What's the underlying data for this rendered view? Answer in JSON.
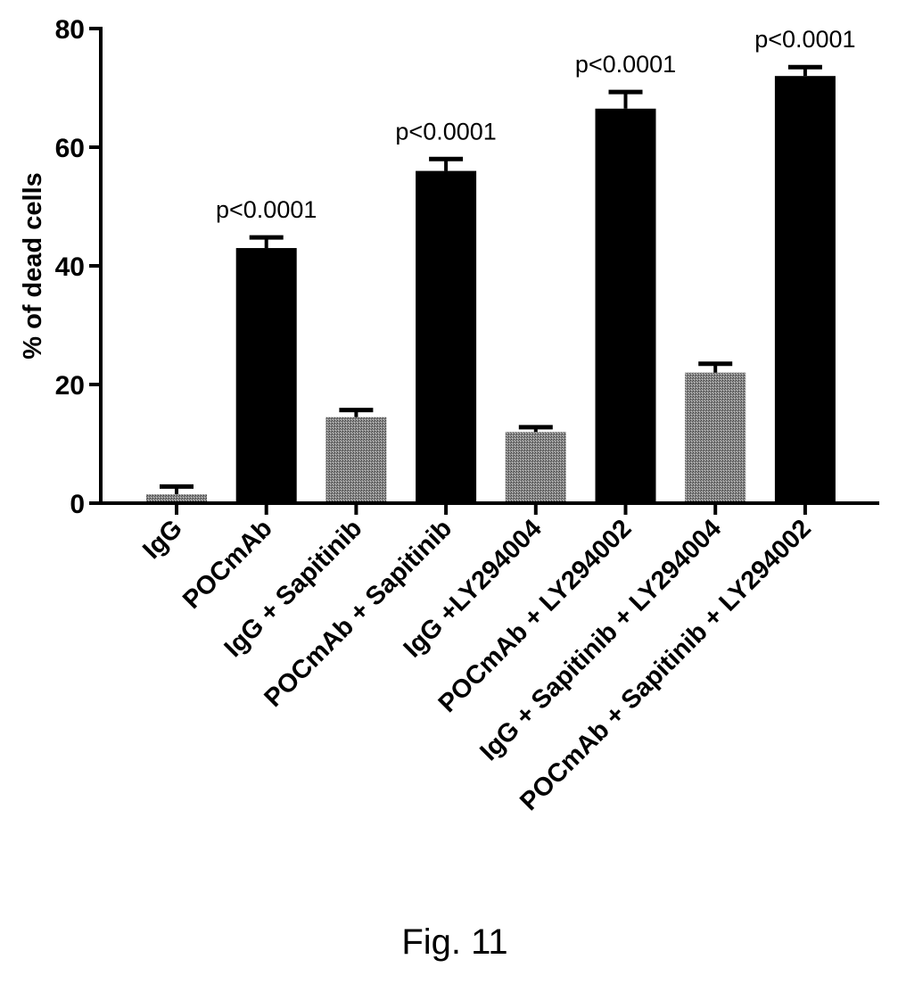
{
  "figure_caption": "Fig. 11",
  "chart_data": {
    "type": "bar",
    "title": "",
    "xlabel": "",
    "ylabel": "% of dead cells",
    "ylim": [
      0,
      80
    ],
    "yticks": [
      0,
      20,
      40,
      60,
      80
    ],
    "grid": false,
    "legend": "none",
    "categories": [
      "IgG",
      "POCmAb",
      "IgG + Sapitinib",
      "POCmAb + Sapitinib",
      "IgG +LY294004",
      "POCmAb + LY294002",
      "IgG + Sapitinib + LY294004",
      "POCmAb + Sapitinib + LY294002"
    ],
    "values": [
      1.5,
      43.0,
      14.5,
      56.0,
      12.0,
      66.5,
      22.0,
      72.0
    ],
    "errors": [
      1.3,
      1.8,
      1.2,
      2.0,
      0.8,
      2.8,
      1.5,
      1.5
    ],
    "fill": [
      "patterned",
      "solid",
      "patterned",
      "solid",
      "patterned",
      "solid",
      "patterned",
      "solid"
    ],
    "annotations": [
      "",
      "p<0.0001",
      "",
      "p<0.0001",
      "",
      "p<0.0001",
      "",
      "p<0.0001"
    ],
    "colors": {
      "solid": "#000000",
      "patterned": "#7a7a7a",
      "axis": "#000000"
    }
  }
}
